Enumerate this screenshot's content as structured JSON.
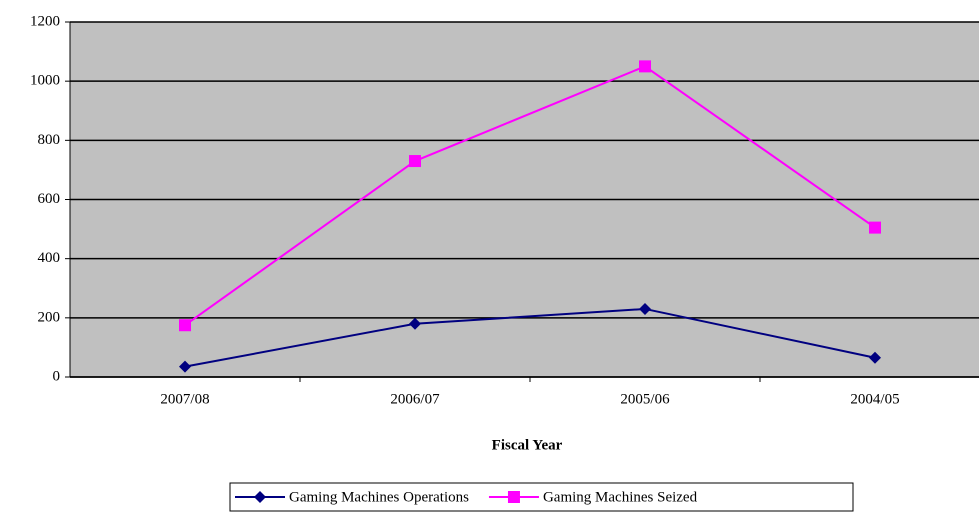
{
  "chart_data": {
    "type": "line",
    "x_label": "Fiscal Year",
    "categories": [
      "2007/08",
      "2006/07",
      "2005/06",
      "2004/05"
    ],
    "series": [
      {
        "name": "Gaming Machines Operations",
        "color": "#000080",
        "marker": "diamond",
        "values": [
          35,
          180,
          230,
          65
        ]
      },
      {
        "name": "Gaming Machines Seized",
        "color": "#ff00ff",
        "marker": "square",
        "values": [
          175,
          730,
          1050,
          505
        ]
      }
    ],
    "ylim": [
      0,
      1200
    ],
    "yticks": [
      0,
      200,
      400,
      600,
      800,
      1000,
      1200
    ],
    "grid": true,
    "plot_background": "#c0c0c0",
    "legend": "bottom"
  }
}
